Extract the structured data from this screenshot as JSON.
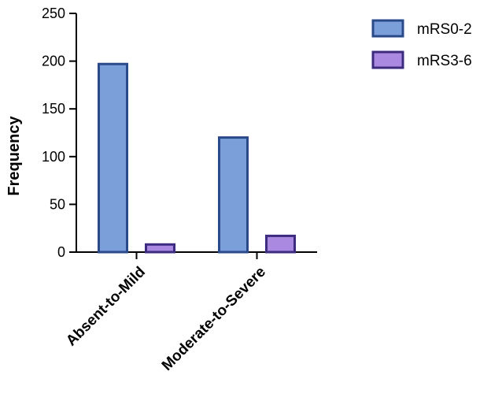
{
  "chart_data": {
    "type": "bar",
    "title": "",
    "xlabel": "",
    "ylabel": "Frequency",
    "categories": [
      "Absent-to-Mild",
      "Moderate-to-Severe"
    ],
    "series": [
      {
        "name": "mRS0-2",
        "values": [
          197,
          120
        ],
        "fill": "#7b9fd9",
        "stroke": "#2a4a8a"
      },
      {
        "name": "mRS3-6",
        "values": [
          8,
          17
        ],
        "fill": "#a98ae0",
        "stroke": "#3d2b80"
      }
    ],
    "ylim": [
      0,
      250
    ],
    "yticks": [
      "0",
      "50",
      "100",
      "150",
      "200",
      "250"
    ],
    "grid": false,
    "legend_position": "top-right"
  }
}
